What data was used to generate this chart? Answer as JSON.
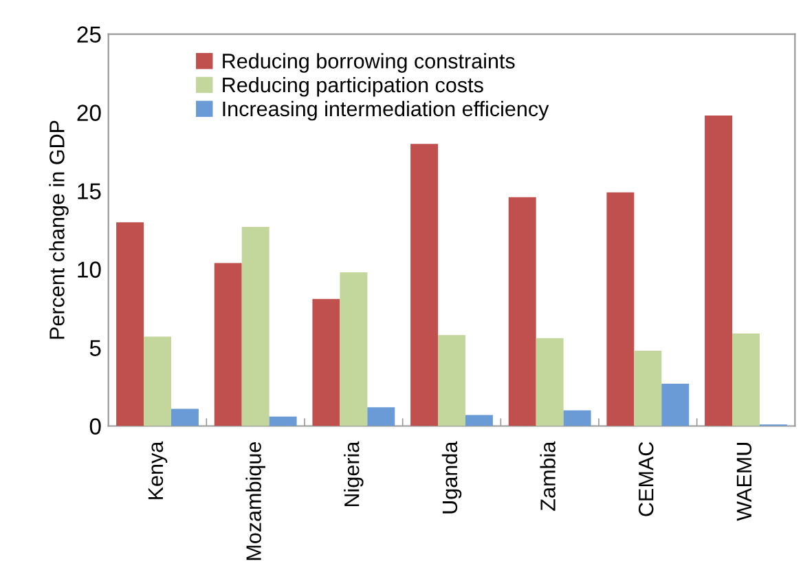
{
  "chart_data": {
    "type": "bar",
    "ylabel": "Percent change in GDP",
    "categories": [
      "Kenya",
      "Mozambique",
      "Nigeria",
      "Uganda",
      "Zambia",
      "CEMAC",
      "WAEMU"
    ],
    "series": [
      {
        "name": "Reducing borrowing constraints",
        "color": "#c0504d",
        "values": [
          13.0,
          10.4,
          8.1,
          18.0,
          14.6,
          14.9,
          19.8
        ]
      },
      {
        "name": "Reducing participation costs",
        "color": "#c3d69b",
        "values": [
          5.7,
          12.7,
          9.8,
          5.8,
          5.6,
          4.8,
          5.9
        ]
      },
      {
        "name": "Increasing intermediation efficiency",
        "color": "#6a9bd6",
        "values": [
          1.1,
          0.6,
          1.2,
          0.7,
          1.0,
          2.7,
          0.1
        ]
      }
    ],
    "ylim": [
      0,
      25
    ],
    "yticks": [
      0,
      5,
      10,
      15,
      20,
      25
    ],
    "grid": false,
    "legend": "top left"
  }
}
